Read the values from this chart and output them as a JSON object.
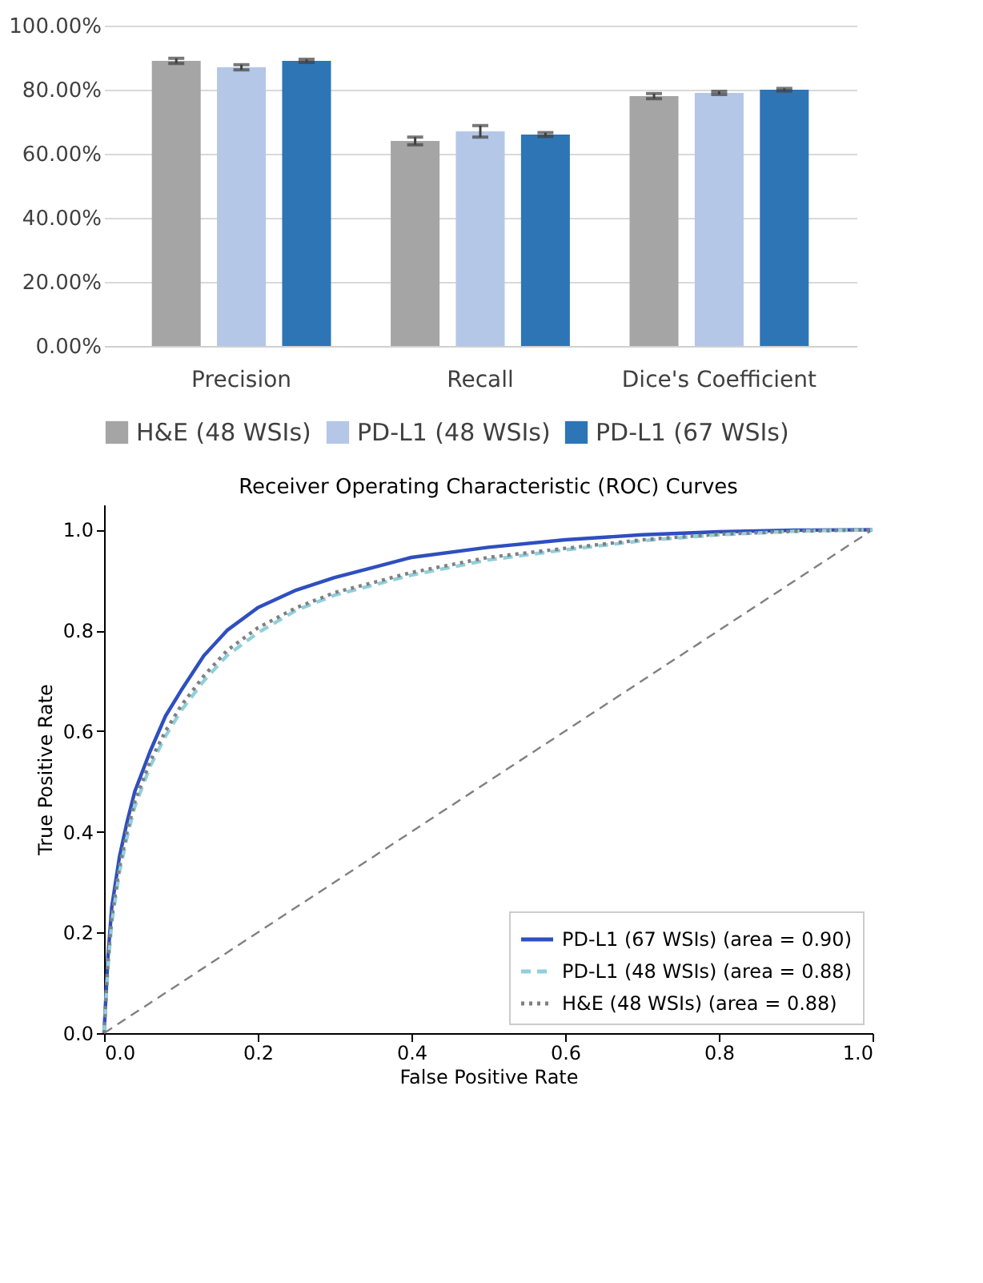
{
  "chart_data": [
    {
      "type": "bar",
      "categories": [
        "Precision",
        "Recall",
        "Dice's Coefficient"
      ],
      "series": [
        {
          "name": "H&E (48 WSIs)",
          "color": "#a5a5a5",
          "values": [
            89,
            64,
            78
          ],
          "errors": [
            0.8,
            1.2,
            0.8
          ]
        },
        {
          "name": "PD-L1 (48 WSIs)",
          "color": "#b4c7e7",
          "values": [
            87,
            67,
            79
          ],
          "errors": [
            0.8,
            1.8,
            0.5
          ]
        },
        {
          "name": "PD-L1 (67 WSIs)",
          "color": "#2e75b6",
          "values": [
            89,
            66,
            80
          ],
          "errors": [
            0.5,
            0.6,
            0.4
          ]
        }
      ],
      "ylim": [
        0,
        100
      ],
      "yticks": [
        {
          "value": 0,
          "label": "0.00%"
        },
        {
          "value": 20,
          "label": "20.00%"
        },
        {
          "value": 40,
          "label": "40.00%"
        },
        {
          "value": 60,
          "label": "60.00%"
        },
        {
          "value": 80,
          "label": "80.00%"
        },
        {
          "value": 100,
          "label": "100.00%"
        }
      ],
      "grid": "y",
      "legend": "bottom"
    },
    {
      "type": "line",
      "title": "Receiver Operating Characteristic (ROC) Curves",
      "xlabel": "False Positive Rate",
      "ylabel": "True Positive Rate",
      "series": [
        {
          "name": "PD-L1 (67 WSIs) (area = 0.90)",
          "color": "#2f4fbf",
          "line_style": "solid",
          "x": [
            0,
            0.005,
            0.01,
            0.02,
            0.03,
            0.04,
            0.06,
            0.08,
            0.1,
            0.13,
            0.16,
            0.2,
            0.25,
            0.3,
            0.35,
            0.4,
            0.5,
            0.6,
            0.7,
            0.8,
            0.9,
            1
          ],
          "values": [
            0,
            0.15,
            0.25,
            0.35,
            0.42,
            0.48,
            0.56,
            0.63,
            0.68,
            0.75,
            0.8,
            0.845,
            0.88,
            0.905,
            0.925,
            0.945,
            0.965,
            0.98,
            0.99,
            0.996,
            0.999,
            1
          ]
        },
        {
          "name": "PD-L1 (48 WSIs) (area = 0.88)",
          "color": "#90d0dc",
          "line_style": "dashed",
          "x": [
            0,
            0.005,
            0.01,
            0.02,
            0.03,
            0.04,
            0.06,
            0.08,
            0.1,
            0.13,
            0.16,
            0.2,
            0.25,
            0.3,
            0.35,
            0.4,
            0.5,
            0.6,
            0.7,
            0.8,
            0.9,
            1
          ],
          "values": [
            0,
            0.13,
            0.22,
            0.32,
            0.39,
            0.45,
            0.53,
            0.59,
            0.64,
            0.7,
            0.75,
            0.795,
            0.84,
            0.87,
            0.89,
            0.91,
            0.94,
            0.96,
            0.978,
            0.99,
            0.997,
            1
          ]
        },
        {
          "name": "H&E (48 WSIs) (area = 0.88)",
          "color": "#808080",
          "line_style": "dotted",
          "x": [
            0,
            0.005,
            0.01,
            0.02,
            0.03,
            0.04,
            0.06,
            0.08,
            0.1,
            0.13,
            0.16,
            0.2,
            0.25,
            0.3,
            0.35,
            0.4,
            0.5,
            0.6,
            0.7,
            0.8,
            0.9,
            1
          ],
          "values": [
            0,
            0.14,
            0.23,
            0.33,
            0.4,
            0.46,
            0.54,
            0.6,
            0.65,
            0.71,
            0.76,
            0.805,
            0.845,
            0.875,
            0.895,
            0.915,
            0.945,
            0.963,
            0.98,
            0.991,
            0.997,
            1
          ]
        },
        {
          "color": "#808080",
          "line_style": "dashed",
          "x": [
            0,
            1
          ],
          "values": [
            0,
            1
          ]
        }
      ],
      "xlim": [
        0,
        1
      ],
      "ylim": [
        0,
        1.05
      ],
      "xticks": [
        {
          "value": 0,
          "label": "0.0"
        },
        {
          "value": 0.2,
          "label": "0.2"
        },
        {
          "value": 0.4,
          "label": "0.4"
        },
        {
          "value": 0.6,
          "label": "0.6"
        },
        {
          "value": 0.8,
          "label": "0.8"
        },
        {
          "value": 1,
          "label": "1.0"
        }
      ],
      "yticks": [
        {
          "value": 0,
          "label": "0.0"
        },
        {
          "value": 0.2,
          "label": "0.2"
        },
        {
          "value": 0.4,
          "label": "0.4"
        },
        {
          "value": 0.6,
          "label": "0.6"
        },
        {
          "value": 0.8,
          "label": "0.8"
        },
        {
          "value": 1,
          "label": "1.0"
        }
      ],
      "grid": false,
      "legend": "bottom right"
    }
  ]
}
